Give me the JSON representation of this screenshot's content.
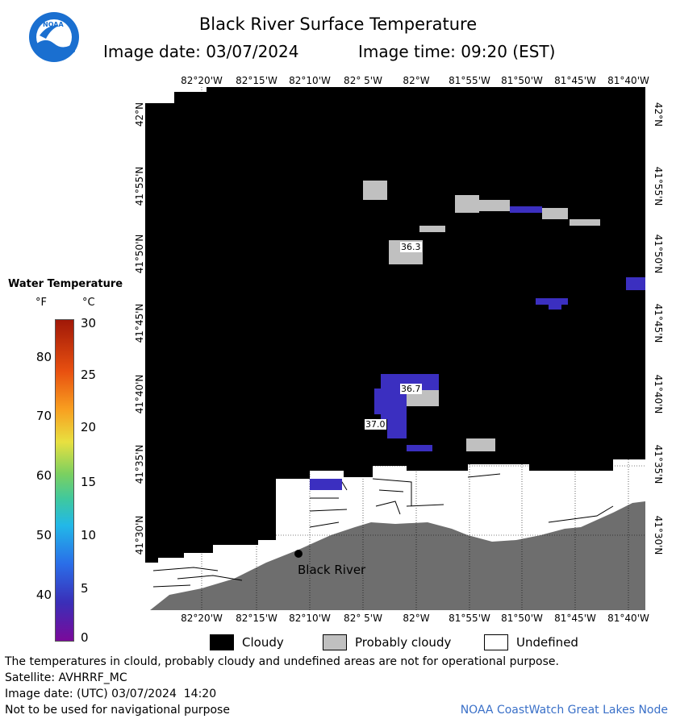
{
  "header": {
    "title": "Black River Surface Temperature",
    "image_date_label": "Image date: 03/07/2024",
    "image_time_label": "Image time: 09:20 (EST)",
    "logo_text": "NOAA"
  },
  "legend": {
    "title": "Water Temperature",
    "unit_f": "°F",
    "unit_c": "°C",
    "f_ticks": [
      "80",
      "70",
      "60",
      "50",
      "40"
    ],
    "c_ticks": [
      "30",
      "25",
      "20",
      "15",
      "10",
      "5",
      "0"
    ]
  },
  "map": {
    "lon_labels": [
      "82°20'W",
      "82°15'W",
      "82°10'W",
      "82° 5'W",
      "82°W",
      "81°55'W",
      "81°50'W",
      "81°45'W",
      "81°40'W"
    ],
    "lat_labels": [
      "42°N",
      "41°55'N",
      "41°50'N",
      "41°45'N",
      "41°40'N",
      "41°35'N",
      "41°30'N"
    ],
    "place_name": "Black River",
    "temperature_labels": [
      "36.3",
      "36.7",
      "37.0"
    ],
    "colors": {
      "cloudy": "#000000",
      "probably_cloudy": "#c0c0c0",
      "land": "#6e6e6e",
      "water_cold": "#3b2fc0",
      "undefined": "#ffffff"
    }
  },
  "categories": {
    "cloudy": "Cloudy",
    "probably_cloudy": "Probably cloudy",
    "undefined": "Undefined"
  },
  "footer": {
    "disclaimer": "The temperatures in clould, probably cloudy and undefined areas are not for operational purpose.",
    "satellite": "Satellite: AVHRRF_MC",
    "utc_date": "Image date: (UTC) 03/07/2024  14:20",
    "nav_warning": "Not to be used for navigational purpose",
    "credit": "NOAA CoastWatch Great Lakes Node"
  }
}
